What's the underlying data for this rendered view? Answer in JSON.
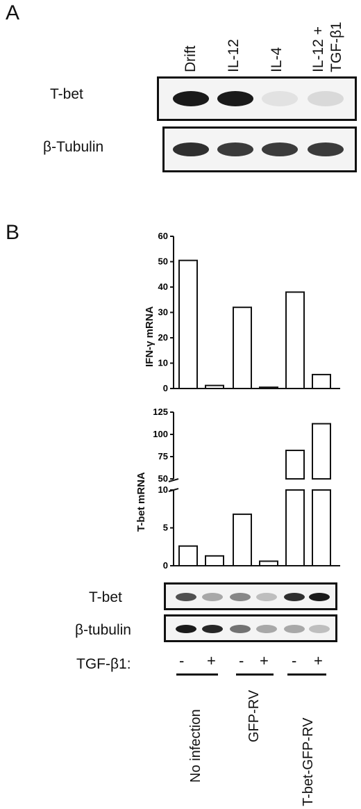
{
  "panelA": {
    "letter": "A",
    "lanes": [
      "Drift",
      "IL-12",
      "IL-4",
      "IL-12 +",
      "TGF-β1"
    ],
    "rows": [
      "T-bet",
      "β-Tubulin"
    ],
    "bands": {
      "tbet": [
        1.0,
        1.0,
        0.08,
        0.12
      ],
      "tubulin": [
        0.9,
        0.85,
        0.85,
        0.85
      ]
    }
  },
  "panelB": {
    "letter": "B",
    "chart_data": [
      {
        "type": "bar",
        "ylabel": "IFN-γ mRNA",
        "ylim": [
          0,
          60
        ],
        "yticks": [
          "60",
          "50",
          "40",
          "30",
          "20",
          "10",
          "0"
        ],
        "values": [
          50.5,
          1.2,
          32,
          0.5,
          38,
          5.5
        ]
      },
      {
        "type": "bar",
        "ylabel": "T-bet mRNA",
        "broken_axis": true,
        "ylim_lower": [
          0,
          10
        ],
        "ylim_upper": [
          50,
          125
        ],
        "yticks_lower": [
          "10",
          "5",
          "0"
        ],
        "yticks_upper": [
          "125",
          "100",
          "75",
          "50"
        ],
        "values": [
          2.6,
          1.3,
          6.8,
          0.6,
          82,
          112
        ]
      }
    ],
    "blot_rows": [
      "T-bet",
      "β-tubulin"
    ],
    "tgf_label": "TGF-β1:",
    "tgf_signs": [
      "-",
      "+",
      "-",
      "+",
      "-",
      "+"
    ],
    "groups": [
      "No infection",
      "GFP-RV",
      "T-bet-GFP-RV"
    ],
    "bands": {
      "tbet": [
        0.75,
        0.35,
        0.5,
        0.25,
        0.9,
        1.0
      ],
      "tubulin": [
        1.0,
        0.95,
        0.6,
        0.35,
        0.35,
        0.25
      ]
    }
  }
}
